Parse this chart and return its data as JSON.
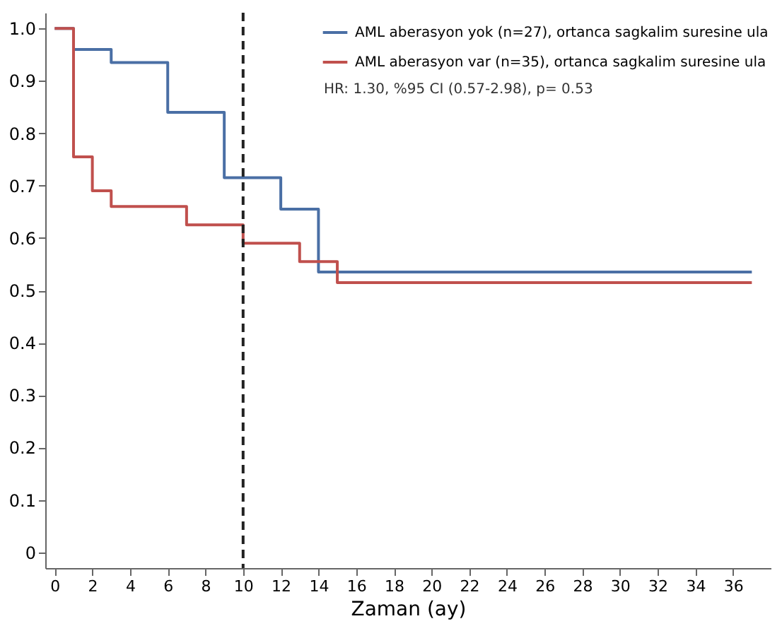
{
  "chart_data": {
    "type": "step",
    "xlabel": "Zaman (ay)",
    "xlim": [
      -0.5,
      38
    ],
    "xticks": [
      0,
      2,
      4,
      6,
      8,
      10,
      12,
      14,
      16,
      18,
      20,
      22,
      24,
      26,
      28,
      30,
      32,
      34,
      36
    ],
    "ylim": [
      -0.03,
      1.03
    ],
    "yticks": [
      {
        "value": 0,
        "label": "0"
      },
      0.1,
      0.2,
      0.3,
      0.4,
      0.5,
      0.6,
      0.7,
      0.8,
      0.9,
      {
        "value": 1,
        "label": "1.0"
      }
    ],
    "grid": false,
    "legend": "top right",
    "line_style": "solid",
    "marker": "none",
    "series": [
      {
        "name": "AML aberasyon yok (n=27), ortanca sagkalim suresine ula",
        "color": "#4a6fa5",
        "x": [
          0,
          1,
          3,
          6,
          9,
          12,
          14,
          37
        ],
        "values": [
          1.0,
          0.96,
          0.935,
          0.84,
          0.715,
          0.655,
          0.535,
          0.535
        ]
      },
      {
        "name": "AML aberasyon var (n=35), ortanca sagkalim suresine ula",
        "color": "#c0504d",
        "x": [
          0,
          1,
          2,
          3,
          7,
          10,
          13,
          15,
          37
        ],
        "values": [
          1.0,
          0.755,
          0.69,
          0.66,
          0.625,
          0.59,
          0.555,
          0.515,
          0.515
        ]
      }
    ],
    "ref_lines": [
      {
        "axis": "x",
        "value": 10,
        "color": "#222222",
        "line_style": "dashed"
      }
    ],
    "annotations": [
      "HR: 1.30, %95 CI (0.57-2.98), p= 0.53"
    ]
  }
}
